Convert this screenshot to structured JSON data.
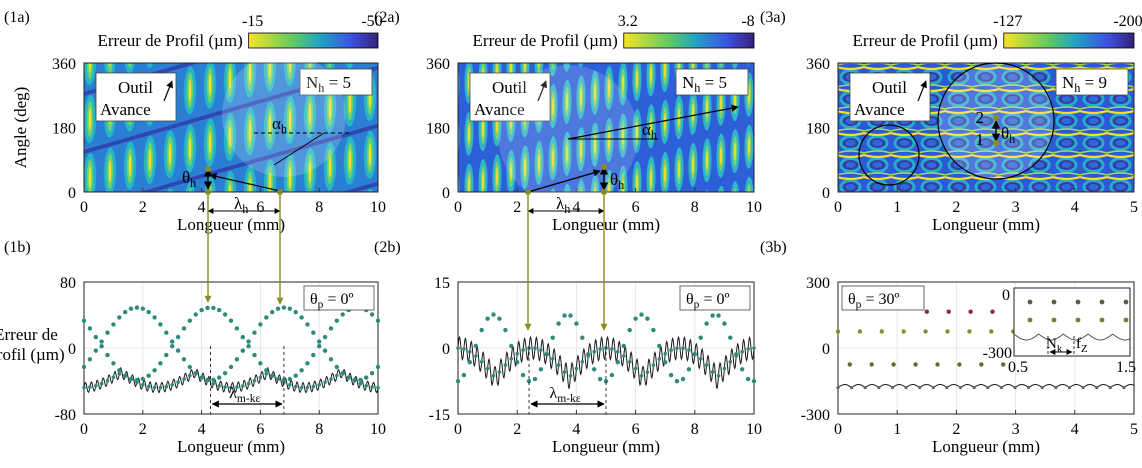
{
  "chart_data": [
    {
      "id": "1a",
      "panel_label": "(1a)",
      "type": "heatmap",
      "colorbar_label": "Erreur de Profil (µm)",
      "cbar_min_label": "-15",
      "cbar_max_label": "-50",
      "xlabel": "Longueur (mm)",
      "ylabel": "Angle (deg)",
      "xlim": [
        0,
        10
      ],
      "ylim": [
        0,
        360
      ],
      "xticks": [
        "0",
        "2",
        "4",
        "6",
        "8",
        "10"
      ],
      "yticks": [
        "0",
        "180",
        "360"
      ],
      "box_text": [
        "Outil",
        "Avance"
      ],
      "nh_label": "N",
      "nh_sub": "h",
      "nh_value": "= 5",
      "annotations": {
        "theta": "θ",
        "theta_sub": "h",
        "lambda": "λ",
        "lambda_sub": "h",
        "alpha": "α",
        "alpha_sub": "h"
      }
    },
    {
      "id": "2a",
      "panel_label": "(2a)",
      "type": "heatmap",
      "colorbar_label": "Erreur de Profil (µm)",
      "cbar_min_label": "3.2",
      "cbar_max_label": "-8",
      "xlabel": "Longueur (mm)",
      "ylabel": "",
      "xlim": [
        0,
        10
      ],
      "ylim": [
        0,
        360
      ],
      "xticks": [
        "0",
        "2",
        "4",
        "6",
        "8",
        "10"
      ],
      "yticks": [
        "0",
        "180",
        "360"
      ],
      "box_text": [
        "Outil",
        "Avance"
      ],
      "nh_label": "N",
      "nh_sub": "h",
      "nh_value": "= 5",
      "annotations": {
        "theta": "θ",
        "theta_sub": "h",
        "lambda": "λ",
        "lambda_sub": "h",
        "alpha": "α",
        "alpha_sub": "h"
      }
    },
    {
      "id": "3a",
      "panel_label": "(3a)",
      "type": "heatmap",
      "colorbar_label": "Erreur de Profil (µm)",
      "cbar_min_label": "-127",
      "cbar_max_label": "-200",
      "xlabel": "Longueur (mm)",
      "ylabel": "",
      "xlim": [
        0,
        5
      ],
      "ylim": [
        0,
        360
      ],
      "xticks": [
        "0",
        "1",
        "2",
        "3",
        "4",
        "5"
      ],
      "yticks": [
        "0",
        "180",
        "360"
      ],
      "box_text": [
        "Outil",
        "Avance"
      ],
      "nh_label": "N",
      "nh_sub": "h",
      "nh_value": "= 9",
      "annotations": {
        "theta": "θ",
        "theta_sub": "h",
        "row1": "1",
        "row2": "2"
      }
    },
    {
      "id": "1b",
      "panel_label": "(1b)",
      "type": "scatter",
      "xlabel": "Longueur (mm)",
      "ylabel_lines": [
        "Erreur de",
        "Profil (µm)"
      ],
      "xlim": [
        0,
        10
      ],
      "ylim": [
        -80,
        80
      ],
      "xticks": [
        "0",
        "2",
        "4",
        "6",
        "8",
        "10"
      ],
      "yticks": [
        "-80",
        "0",
        "80"
      ],
      "theta_label": "θ",
      "theta_sub": "p",
      "theta_value": "= 0º",
      "lambda_label": "λ",
      "lambda_sub": "m-kε",
      "dots": {
        "period": 5.0,
        "phases": [
          1.8,
          4.3
        ],
        "amplitude": 44,
        "offset": 5
      },
      "line": {
        "baseline": -40,
        "envelope_amp": 18,
        "envelope_period": 2.5,
        "ripple_amp": 6,
        "ripple_period": 0.2
      }
    },
    {
      "id": "2b",
      "panel_label": "(2b)",
      "type": "scatter",
      "xlabel": "Longueur (mm)",
      "ylabel_lines": [],
      "xlim": [
        0,
        10
      ],
      "ylim": [
        -15,
        15
      ],
      "xticks": [
        "0",
        "2",
        "4",
        "6",
        "8",
        "10"
      ],
      "yticks": [
        "-15",
        "0",
        "15"
      ],
      "theta_label": "θ",
      "theta_sub": "p",
      "theta_value": "= 0º",
      "lambda_label": "λ",
      "lambda_sub": "m-kε",
      "dots": {
        "period": 2.5,
        "phases": [
          1.2
        ],
        "amplitude": 7.6,
        "offset": 0
      },
      "line": {
        "baseline": 0,
        "envelope_amp": 7.5,
        "envelope_period": 2.5,
        "ripple_amp": 2.5,
        "ripple_period": 0.2
      }
    },
    {
      "id": "3b",
      "panel_label": "(3b)",
      "type": "scatter",
      "xlabel": "Longueur (mm)",
      "ylabel_lines": [],
      "xlim": [
        0,
        5
      ],
      "ylim": [
        -300,
        300
      ],
      "xticks": [
        "0",
        "1",
        "2",
        "3",
        "4",
        "5"
      ],
      "yticks": [
        "-300",
        "0",
        "300"
      ],
      "theta_label": "θ",
      "theta_sub": "p",
      "theta_value": "= 30º",
      "dot_rows": [
        {
          "y": 165,
          "x_start": 1.5,
          "x_end": 2.8,
          "step": 0.37,
          "color": "#8b2a3a"
        },
        {
          "y": 75,
          "x_start": 0.0,
          "x_end": 3.1,
          "step": 0.37,
          "color": "#8c8c2a"
        },
        {
          "y": -75,
          "x_start": 0.2,
          "x_end": 3.1,
          "step": 0.37,
          "color": "#6a6a2a"
        }
      ],
      "line": {
        "baseline": -180,
        "ripple_amp": 14,
        "ripple_period": 0.23
      },
      "inset": {
        "xlim": [
          0.5,
          1.5
        ],
        "ylim": [
          -300,
          0
        ],
        "ytick_top": "0",
        "ytick_bottom": "-300",
        "xtick_left": "0.5",
        "xtick_right": "1.5",
        "label_nk": "N",
        "label_nk_sub": "k",
        "label_fz": "f",
        "label_fz_sub": "Z"
      }
    }
  ],
  "colors": {
    "dot_teal": "#2e8b7a",
    "line": "#1a1a1a",
    "olive": "#8c8c1e",
    "grid": "#e6e6e6",
    "colormap": [
      "#f2e12a",
      "#26c2c6",
      "#2a5fe0",
      "#3a1f80"
    ]
  }
}
